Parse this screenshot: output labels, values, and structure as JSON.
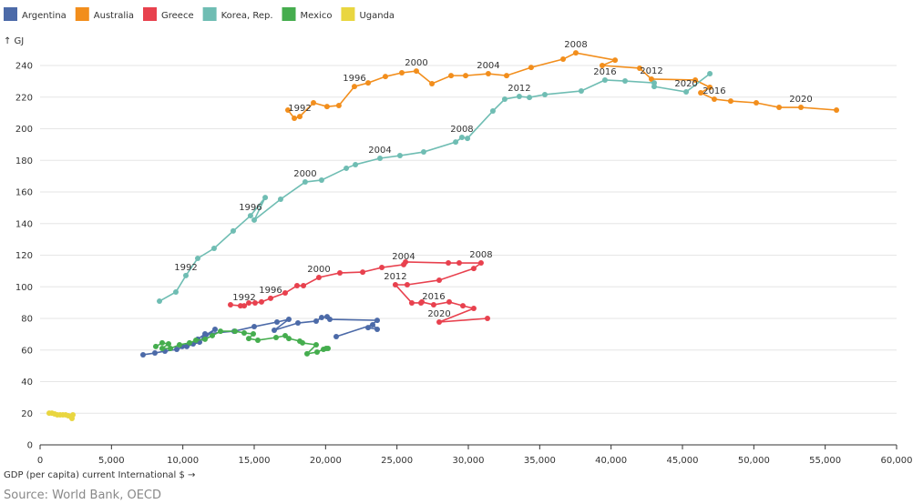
{
  "chart_data": {
    "type": "scatter",
    "subtype": "connected-scatter",
    "ylabel": "↑ GJ",
    "xlabel": "GDP (per capita) current International $ →",
    "xlim": [
      0,
      60000
    ],
    "ylim": [
      0,
      250
    ],
    "xticks": [
      0,
      5000,
      10000,
      15000,
      20000,
      25000,
      30000,
      35000,
      40000,
      45000,
      50000,
      55000,
      60000
    ],
    "xtick_labels": [
      "0",
      "5,000",
      "10,000",
      "15,000",
      "20,000",
      "25,000",
      "30,000",
      "35,000",
      "40,000",
      "45,000",
      "50,000",
      "55,000",
      "60,000"
    ],
    "yticks": [
      0,
      20,
      40,
      60,
      80,
      100,
      120,
      140,
      160,
      180,
      200,
      220,
      240
    ],
    "ytick_labels": [
      "0",
      "20",
      "40",
      "60",
      "80",
      "100",
      "120",
      "140",
      "160",
      "180",
      "200",
      "220",
      "240"
    ],
    "grid": "horizontal",
    "legend_position": "top-left",
    "series": [
      {
        "name": "Argentina",
        "color": "#4c6aa8",
        "labels": [],
        "points": [
          [
            7213,
            57.0
          ],
          [
            8043,
            58.1
          ],
          [
            8745,
            59.3
          ],
          [
            9575,
            60.4
          ],
          [
            10277,
            62.7
          ],
          [
            9957,
            62.2
          ],
          [
            10723,
            63.9
          ],
          [
            11489,
            67.3
          ],
          [
            12255,
            73.1
          ],
          [
            11617,
            69.6
          ],
          [
            11170,
            65.0
          ],
          [
            10277,
            62.2
          ],
          [
            11043,
            66.8
          ],
          [
            11553,
            70.2
          ],
          [
            13596,
            71.9
          ],
          [
            15000,
            74.8
          ],
          [
            16596,
            77.7
          ],
          [
            17426,
            79.4
          ],
          [
            16404,
            72.5
          ],
          [
            18064,
            77.1
          ],
          [
            19340,
            78.3
          ],
          [
            19723,
            80.6
          ],
          [
            20106,
            81.1
          ],
          [
            20298,
            79.4
          ],
          [
            23617,
            78.8
          ],
          [
            22979,
            74.2
          ],
          [
            23617,
            73.1
          ],
          [
            23298,
            76.0
          ],
          [
            20745,
            68.5
          ]
        ]
      },
      {
        "name": "Australia",
        "color": "#f28e1c",
        "labels": [
          1992,
          1996,
          2000,
          2004,
          2008,
          2012,
          2016,
          2020
        ],
        "points": [
          [
            1990,
            17362,
            211.8
          ],
          [
            1991,
            17810,
            206.6
          ],
          [
            1992,
            18190,
            207.7
          ],
          [
            1993,
            19150,
            216.4
          ],
          [
            1994,
            20100,
            214.0
          ],
          [
            1995,
            20930,
            214.7
          ],
          [
            1996,
            22020,
            226.7
          ],
          [
            1997,
            22980,
            229.0
          ],
          [
            1998,
            24190,
            233.0
          ],
          [
            1999,
            25340,
            235.4
          ],
          [
            2000,
            26360,
            236.5
          ],
          [
            2001,
            27450,
            228.5
          ],
          [
            2002,
            28790,
            233.6
          ],
          [
            2003,
            29810,
            233.6
          ],
          [
            2004,
            31400,
            234.8
          ],
          [
            2005,
            32680,
            233.6
          ],
          [
            2006,
            34400,
            238.8
          ],
          [
            2007,
            36640,
            244.0
          ],
          [
            2008,
            37530,
            248.0
          ],
          [
            2009,
            40280,
            243.4
          ],
          [
            2010,
            39380,
            240.0
          ],
          [
            2011,
            42000,
            238.3
          ],
          [
            2012,
            42830,
            231.4
          ],
          [
            2013,
            45900,
            230.8
          ],
          [
            2014,
            46920,
            226.2
          ],
          [
            2015,
            46280,
            222.7
          ],
          [
            2016,
            47230,
            218.7
          ],
          [
            2017,
            48380,
            217.5
          ],
          [
            2018,
            50170,
            216.4
          ],
          [
            2019,
            51770,
            213.5
          ],
          [
            2020,
            53300,
            213.5
          ],
          [
            2021,
            55790,
            211.8
          ]
        ]
      },
      {
        "name": "Greece",
        "color": "#e8414e",
        "labels": [
          1992,
          1996,
          2000,
          2004,
          2008,
          2012,
          2016,
          2020
        ],
        "points": [
          [
            1990,
            13340,
            88.6
          ],
          [
            1991,
            14040,
            88.0
          ],
          [
            1992,
            14300,
            88.0
          ],
          [
            1993,
            14620,
            89.8
          ],
          [
            1994,
            15060,
            89.8
          ],
          [
            1995,
            15510,
            90.4
          ],
          [
            1996,
            16150,
            92.7
          ],
          [
            1997,
            17170,
            96.1
          ],
          [
            1998,
            18000,
            100.7
          ],
          [
            1999,
            18450,
            100.7
          ],
          [
            2000,
            19530,
            105.9
          ],
          [
            2001,
            21000,
            108.8
          ],
          [
            2002,
            22600,
            109.3
          ],
          [
            2003,
            23940,
            112.2
          ],
          [
            2004,
            25470,
            114.0
          ],
          [
            2005,
            25600,
            115.7
          ],
          [
            2006,
            28600,
            115.1
          ],
          [
            2007,
            29360,
            115.1
          ],
          [
            2008,
            30890,
            115.1
          ],
          [
            2009,
            30380,
            111.6
          ],
          [
            2010,
            27960,
            104.2
          ],
          [
            2011,
            25720,
            101.3
          ],
          [
            2012,
            24890,
            101.3
          ],
          [
            2013,
            26040,
            89.8
          ],
          [
            2014,
            26680,
            89.8
          ],
          [
            2015,
            26750,
            90.4
          ],
          [
            2016,
            27570,
            88.6
          ],
          [
            2017,
            28660,
            90.4
          ],
          [
            2018,
            29620,
            88.0
          ],
          [
            2019,
            30380,
            86.3
          ],
          [
            2020,
            27960,
            77.7
          ],
          [
            2021,
            31340,
            80.0
          ]
        ]
      },
      {
        "name": "Korea, Rep.",
        "color": "#6fbdb3",
        "labels": [
          1992,
          1996,
          2000,
          2004,
          2008,
          2012,
          2016,
          2020
        ],
        "points": [
          [
            1990,
            8362,
            90.9
          ],
          [
            1991,
            9511,
            96.7
          ],
          [
            1992,
            10213,
            107.1
          ],
          [
            1993,
            11043,
            118.0
          ],
          [
            1994,
            12190,
            124.3
          ],
          [
            1995,
            13530,
            135.3
          ],
          [
            1996,
            14740,
            145.0
          ],
          [
            1997,
            15770,
            156.5
          ],
          [
            1998,
            15000,
            142.2
          ],
          [
            1999,
            16850,
            155.4
          ],
          [
            2000,
            18570,
            166.3
          ],
          [
            2001,
            19720,
            167.5
          ],
          [
            2002,
            21450,
            175.0
          ],
          [
            2003,
            22090,
            177.3
          ],
          [
            2004,
            23810,
            181.3
          ],
          [
            2005,
            25210,
            183.0
          ],
          [
            2006,
            26870,
            185.3
          ],
          [
            2007,
            29110,
            191.6
          ],
          [
            2008,
            29550,
            194.5
          ],
          [
            2009,
            29940,
            193.9
          ],
          [
            2010,
            31720,
            211.2
          ],
          [
            2011,
            32550,
            218.7
          ],
          [
            2012,
            33570,
            220.4
          ],
          [
            2013,
            34280,
            219.8
          ],
          [
            2014,
            35360,
            221.6
          ],
          [
            2015,
            37910,
            223.9
          ],
          [
            2016,
            39570,
            230.8
          ],
          [
            2017,
            40980,
            230.2
          ],
          [
            2018,
            43020,
            229.0
          ],
          [
            2019,
            43020,
            226.7
          ],
          [
            2020,
            45260,
            223.3
          ],
          [
            2021,
            46920,
            234.8
          ]
        ]
      },
      {
        "name": "Mexico",
        "color": "#45ad4e",
        "labels": [],
        "points": [
          [
            8106,
            62.2
          ],
          [
            8553,
            64.5
          ],
          [
            9000,
            63.9
          ],
          [
            8553,
            61.0
          ],
          [
            9128,
            61.0
          ],
          [
            9766,
            63.3
          ],
          [
            10468,
            64.5
          ],
          [
            10915,
            66.2
          ],
          [
            11553,
            66.8
          ],
          [
            12064,
            69.1
          ],
          [
            12638,
            71.9
          ],
          [
            13660,
            71.9
          ],
          [
            14298,
            70.8
          ],
          [
            14936,
            70.2
          ],
          [
            14617,
            67.3
          ],
          [
            15255,
            66.2
          ],
          [
            16532,
            67.9
          ],
          [
            17170,
            69.1
          ],
          [
            17426,
            67.3
          ],
          [
            18191,
            65.6
          ],
          [
            18383,
            64.5
          ],
          [
            19340,
            63.3
          ],
          [
            18702,
            57.6
          ],
          [
            19404,
            58.7
          ],
          [
            19851,
            60.4
          ],
          [
            20043,
            61.0
          ],
          [
            20170,
            61.0
          ]
        ]
      },
      {
        "name": "Uganda",
        "color": "#e9d640",
        "labels": [],
        "points": [
          [
            638,
            20.1
          ],
          [
            830,
            20.1
          ],
          [
            1021,
            19.6
          ],
          [
            1213,
            19.0
          ],
          [
            1404,
            19.0
          ],
          [
            1596,
            19.0
          ],
          [
            1787,
            19.0
          ],
          [
            1979,
            18.4
          ],
          [
            2170,
            17.8
          ],
          [
            2234,
            16.7
          ],
          [
            2298,
            19.0
          ]
        ]
      }
    ]
  },
  "source": "Source: World Bank, OECD"
}
